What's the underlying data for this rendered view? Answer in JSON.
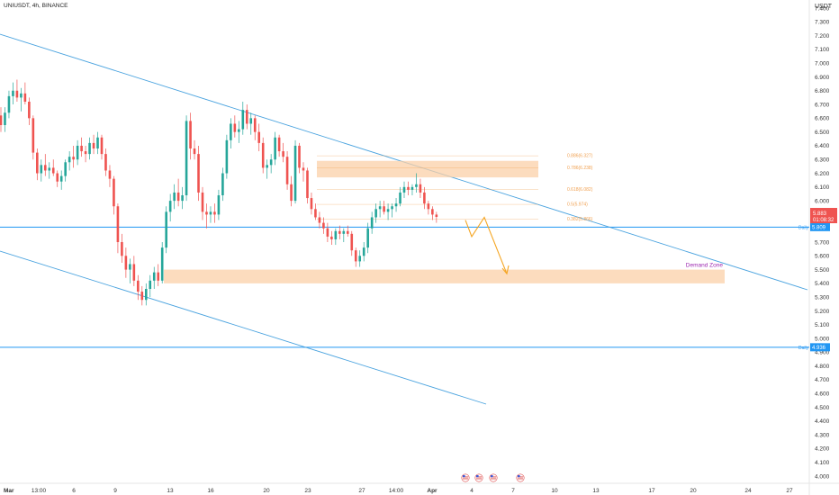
{
  "symbol": "UNIUSDT, 4h, BINANCE",
  "currency": "USDT",
  "colors": {
    "up": "#26a69a",
    "down": "#ef5350",
    "trendline": "#4aa3df",
    "zone": "#fbd0a8",
    "fib": "#f0a050",
    "projection": "#f5a623",
    "level": "#2196f3",
    "label_purple": "#9c27b0"
  },
  "chart_data": {
    "type": "candlestick",
    "y_ticks": [
      "7.400",
      "7.300",
      "7.200",
      "7.100",
      "7.000",
      "6.900",
      "6.800",
      "6.700",
      "6.600",
      "6.500",
      "6.400",
      "6.300",
      "6.200",
      "6.100",
      "6.000",
      "5.900",
      "5.800",
      "5.700",
      "5.600",
      "5.500",
      "5.400",
      "5.300",
      "5.200",
      "5.100",
      "5.000",
      "4.900",
      "4.800",
      "4.700",
      "4.600",
      "4.500",
      "4.400",
      "4.300",
      "4.200",
      "4.100",
      "4.000"
    ],
    "ylim": [
      3.92,
      7.47
    ],
    "x_ticks": [
      "Mar",
      "13:00",
      "6",
      "9",
      "13",
      "16",
      "20",
      "23",
      "27",
      "14:00",
      "Apr",
      "4",
      "7",
      "10",
      "13",
      "17",
      "20",
      "24",
      "27"
    ],
    "current_price": "5.883",
    "countdown": "01:08:32",
    "daily_levels": [
      {
        "label": "Daily",
        "value": "5.809",
        "price": 5.809
      },
      {
        "label": "Daily",
        "value": "4.936",
        "price": 4.936
      }
    ],
    "fib_levels": [
      {
        "label": "0.886(6.327)",
        "price": 6.327
      },
      {
        "label": "0.786(6.238)",
        "price": 6.238
      },
      {
        "label": "0.618(6.082)",
        "price": 6.082
      },
      {
        "label": "0.5(5.974)",
        "price": 5.974
      },
      {
        "label": "0.382(5.866)",
        "price": 5.866
      }
    ],
    "zones": [
      {
        "label": "",
        "low": 6.17,
        "high": 6.29
      },
      {
        "label": "Demand Zone",
        "low": 5.4,
        "high": 5.5
      }
    ],
    "candles": [
      {
        "o": 6.62,
        "h": 6.68,
        "l": 6.5,
        "c": 6.55
      },
      {
        "o": 6.55,
        "h": 6.68,
        "l": 6.5,
        "c": 6.64
      },
      {
        "o": 6.64,
        "h": 6.8,
        "l": 6.6,
        "c": 6.76
      },
      {
        "o": 6.76,
        "h": 6.86,
        "l": 6.7,
        "c": 6.8
      },
      {
        "o": 6.8,
        "h": 6.88,
        "l": 6.72,
        "c": 6.75
      },
      {
        "o": 6.75,
        "h": 6.82,
        "l": 6.65,
        "c": 6.78
      },
      {
        "o": 6.78,
        "h": 6.86,
        "l": 6.7,
        "c": 6.72
      },
      {
        "o": 6.72,
        "h": 6.75,
        "l": 6.55,
        "c": 6.6
      },
      {
        "o": 6.6,
        "h": 6.62,
        "l": 6.3,
        "c": 6.35
      },
      {
        "o": 6.35,
        "h": 6.38,
        "l": 6.15,
        "c": 6.2
      },
      {
        "o": 6.2,
        "h": 6.3,
        "l": 6.14,
        "c": 6.26
      },
      {
        "o": 6.26,
        "h": 6.34,
        "l": 6.18,
        "c": 6.22
      },
      {
        "o": 6.22,
        "h": 6.28,
        "l": 6.16,
        "c": 6.24
      },
      {
        "o": 6.24,
        "h": 6.3,
        "l": 6.18,
        "c": 6.2
      },
      {
        "o": 6.2,
        "h": 6.22,
        "l": 6.1,
        "c": 6.14
      },
      {
        "o": 6.14,
        "h": 6.22,
        "l": 6.08,
        "c": 6.18
      },
      {
        "o": 6.18,
        "h": 6.3,
        "l": 6.14,
        "c": 6.28
      },
      {
        "o": 6.28,
        "h": 6.36,
        "l": 6.22,
        "c": 6.32
      },
      {
        "o": 6.32,
        "h": 6.4,
        "l": 6.24,
        "c": 6.3
      },
      {
        "o": 6.3,
        "h": 6.44,
        "l": 6.26,
        "c": 6.4
      },
      {
        "o": 6.4,
        "h": 6.46,
        "l": 6.32,
        "c": 6.36
      },
      {
        "o": 6.36,
        "h": 6.4,
        "l": 6.28,
        "c": 6.34
      },
      {
        "o": 6.34,
        "h": 6.46,
        "l": 6.3,
        "c": 6.42
      },
      {
        "o": 6.42,
        "h": 6.48,
        "l": 6.34,
        "c": 6.38
      },
      {
        "o": 6.38,
        "h": 6.5,
        "l": 6.34,
        "c": 6.46
      },
      {
        "o": 6.46,
        "h": 6.48,
        "l": 6.3,
        "c": 6.34
      },
      {
        "o": 6.34,
        "h": 6.38,
        "l": 6.18,
        "c": 6.22
      },
      {
        "o": 6.22,
        "h": 6.26,
        "l": 6.1,
        "c": 6.16
      },
      {
        "o": 6.16,
        "h": 6.18,
        "l": 5.9,
        "c": 5.96
      },
      {
        "o": 5.96,
        "h": 5.98,
        "l": 5.62,
        "c": 5.7
      },
      {
        "o": 5.7,
        "h": 5.76,
        "l": 5.55,
        "c": 5.6
      },
      {
        "o": 5.6,
        "h": 5.66,
        "l": 5.44,
        "c": 5.5
      },
      {
        "o": 5.5,
        "h": 5.58,
        "l": 5.4,
        "c": 5.54
      },
      {
        "o": 5.54,
        "h": 5.6,
        "l": 5.38,
        "c": 5.42
      },
      {
        "o": 5.42,
        "h": 5.46,
        "l": 5.28,
        "c": 5.34
      },
      {
        "o": 5.34,
        "h": 5.38,
        "l": 5.24,
        "c": 5.28
      },
      {
        "o": 5.28,
        "h": 5.4,
        "l": 5.24,
        "c": 5.36
      },
      {
        "o": 5.36,
        "h": 5.46,
        "l": 5.3,
        "c": 5.42
      },
      {
        "o": 5.42,
        "h": 5.52,
        "l": 5.36,
        "c": 5.48
      },
      {
        "o": 5.48,
        "h": 5.54,
        "l": 5.38,
        "c": 5.42
      },
      {
        "o": 5.42,
        "h": 5.7,
        "l": 5.4,
        "c": 5.66
      },
      {
        "o": 5.66,
        "h": 5.96,
        "l": 5.62,
        "c": 5.92
      },
      {
        "o": 5.92,
        "h": 6.05,
        "l": 5.85,
        "c": 6.0
      },
      {
        "o": 6.0,
        "h": 6.12,
        "l": 5.94,
        "c": 6.06
      },
      {
        "o": 6.06,
        "h": 6.16,
        "l": 5.96,
        "c": 6.0
      },
      {
        "o": 6.0,
        "h": 6.1,
        "l": 5.94,
        "c": 6.04
      },
      {
        "o": 6.04,
        "h": 6.62,
        "l": 6.0,
        "c": 6.58
      },
      {
        "o": 6.58,
        "h": 6.64,
        "l": 6.3,
        "c": 6.38
      },
      {
        "o": 6.38,
        "h": 6.44,
        "l": 6.3,
        "c": 6.34
      },
      {
        "o": 6.34,
        "h": 6.4,
        "l": 6.0,
        "c": 6.06
      },
      {
        "o": 6.06,
        "h": 6.1,
        "l": 5.86,
        "c": 5.92
      },
      {
        "o": 5.92,
        "h": 5.98,
        "l": 5.8,
        "c": 5.9
      },
      {
        "o": 5.9,
        "h": 5.96,
        "l": 5.84,
        "c": 5.92
      },
      {
        "o": 5.92,
        "h": 5.98,
        "l": 5.84,
        "c": 5.9
      },
      {
        "o": 5.9,
        "h": 6.08,
        "l": 5.86,
        "c": 6.04
      },
      {
        "o": 6.04,
        "h": 6.24,
        "l": 6.0,
        "c": 6.2
      },
      {
        "o": 6.2,
        "h": 6.48,
        "l": 6.16,
        "c": 6.44
      },
      {
        "o": 6.44,
        "h": 6.6,
        "l": 6.38,
        "c": 6.56
      },
      {
        "o": 6.56,
        "h": 6.62,
        "l": 6.46,
        "c": 6.5
      },
      {
        "o": 6.5,
        "h": 6.58,
        "l": 6.42,
        "c": 6.52
      },
      {
        "o": 6.52,
        "h": 6.72,
        "l": 6.48,
        "c": 6.66
      },
      {
        "o": 6.66,
        "h": 6.7,
        "l": 6.52,
        "c": 6.56
      },
      {
        "o": 6.56,
        "h": 6.64,
        "l": 6.48,
        "c": 6.6
      },
      {
        "o": 6.6,
        "h": 6.62,
        "l": 6.44,
        "c": 6.5
      },
      {
        "o": 6.5,
        "h": 6.56,
        "l": 6.36,
        "c": 6.42
      },
      {
        "o": 6.42,
        "h": 6.46,
        "l": 6.2,
        "c": 6.24
      },
      {
        "o": 6.24,
        "h": 6.3,
        "l": 6.16,
        "c": 6.26
      },
      {
        "o": 6.26,
        "h": 6.34,
        "l": 6.2,
        "c": 6.3
      },
      {
        "o": 6.3,
        "h": 6.5,
        "l": 6.26,
        "c": 6.46
      },
      {
        "o": 6.46,
        "h": 6.48,
        "l": 6.32,
        "c": 6.36
      },
      {
        "o": 6.36,
        "h": 6.42,
        "l": 6.28,
        "c": 6.32
      },
      {
        "o": 6.32,
        "h": 6.36,
        "l": 6.08,
        "c": 6.12
      },
      {
        "o": 6.12,
        "h": 6.18,
        "l": 5.96,
        "c": 6.0
      },
      {
        "o": 6.0,
        "h": 6.44,
        "l": 5.98,
        "c": 6.4
      },
      {
        "o": 6.4,
        "h": 6.42,
        "l": 6.2,
        "c": 6.24
      },
      {
        "o": 6.24,
        "h": 6.28,
        "l": 6.14,
        "c": 6.22
      },
      {
        "o": 6.22,
        "h": 6.24,
        "l": 5.98,
        "c": 6.02
      },
      {
        "o": 6.02,
        "h": 6.06,
        "l": 5.9,
        "c": 5.94
      },
      {
        "o": 5.94,
        "h": 5.98,
        "l": 5.86,
        "c": 5.88
      },
      {
        "o": 5.88,
        "h": 5.92,
        "l": 5.8,
        "c": 5.84
      },
      {
        "o": 5.84,
        "h": 5.88,
        "l": 5.76,
        "c": 5.8
      },
      {
        "o": 5.8,
        "h": 5.84,
        "l": 5.7,
        "c": 5.74
      },
      {
        "o": 5.74,
        "h": 5.78,
        "l": 5.68,
        "c": 5.72
      },
      {
        "o": 5.72,
        "h": 5.8,
        "l": 5.68,
        "c": 5.78
      },
      {
        "o": 5.78,
        "h": 5.82,
        "l": 5.72,
        "c": 5.76
      },
      {
        "o": 5.76,
        "h": 5.8,
        "l": 5.7,
        "c": 5.78
      },
      {
        "o": 5.78,
        "h": 5.82,
        "l": 5.74,
        "c": 5.76
      },
      {
        "o": 5.76,
        "h": 5.78,
        "l": 5.6,
        "c": 5.64
      },
      {
        "o": 5.64,
        "h": 5.66,
        "l": 5.52,
        "c": 5.56
      },
      {
        "o": 5.56,
        "h": 5.64,
        "l": 5.52,
        "c": 5.6
      },
      {
        "o": 5.6,
        "h": 5.7,
        "l": 5.56,
        "c": 5.66
      },
      {
        "o": 5.66,
        "h": 5.84,
        "l": 5.62,
        "c": 5.8
      },
      {
        "o": 5.8,
        "h": 5.92,
        "l": 5.76,
        "c": 5.88
      },
      {
        "o": 5.88,
        "h": 5.98,
        "l": 5.84,
        "c": 5.94
      },
      {
        "o": 5.94,
        "h": 6.0,
        "l": 5.88,
        "c": 5.96
      },
      {
        "o": 5.96,
        "h": 6.0,
        "l": 5.9,
        "c": 5.92
      },
      {
        "o": 5.92,
        "h": 5.98,
        "l": 5.86,
        "c": 5.94
      },
      {
        "o": 5.94,
        "h": 5.98,
        "l": 5.88,
        "c": 5.96
      },
      {
        "o": 5.96,
        "h": 6.02,
        "l": 5.92,
        "c": 5.98
      },
      {
        "o": 5.98,
        "h": 6.1,
        "l": 5.96,
        "c": 6.06
      },
      {
        "o": 6.06,
        "h": 6.14,
        "l": 6.02,
        "c": 6.1
      },
      {
        "o": 6.1,
        "h": 6.14,
        "l": 6.04,
        "c": 6.08
      },
      {
        "o": 6.08,
        "h": 6.12,
        "l": 6.04,
        "c": 6.1
      },
      {
        "o": 6.1,
        "h": 6.2,
        "l": 6.06,
        "c": 6.12
      },
      {
        "o": 6.12,
        "h": 6.16,
        "l": 6.02,
        "c": 6.06
      },
      {
        "o": 6.06,
        "h": 6.1,
        "l": 5.94,
        "c": 5.98
      },
      {
        "o": 5.98,
        "h": 6.0,
        "l": 5.9,
        "c": 5.94
      },
      {
        "o": 5.94,
        "h": 5.96,
        "l": 5.86,
        "c": 5.9
      },
      {
        "o": 5.9,
        "h": 5.92,
        "l": 5.84,
        "c": 5.883
      }
    ]
  }
}
